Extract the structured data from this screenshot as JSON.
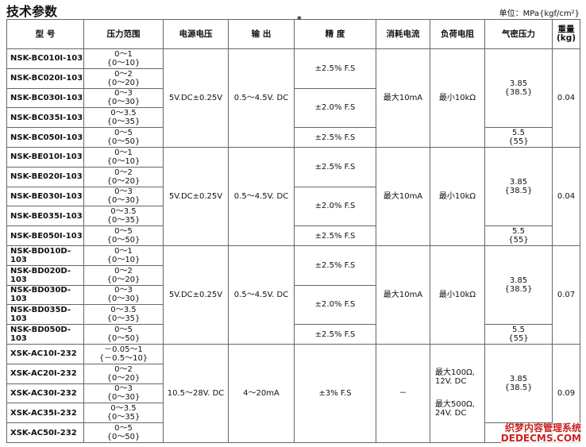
{
  "header": {
    "title": "技术参数",
    "unit": "单位：MPa{kgf/cm²}"
  },
  "table": {
    "columns": [
      "型 号",
      "压力范围",
      "电源电压",
      "输 出",
      "精 度",
      "消耗电流",
      "负荷电阻",
      "气密压力",
      [
        "重量",
        "(kg)"
      ]
    ],
    "note_mark": "*",
    "groups": [
      {
        "rows": [
          {
            "model": "NSK-BC010I-103",
            "range": [
              "0～1",
              "{0～10}"
            ]
          },
          {
            "model": "NSK-BC020I-103",
            "range": [
              "0～2",
              "{0～20}"
            ]
          },
          {
            "model": "NSK-BC030I-103",
            "range": [
              "0～3",
              "{0～30}"
            ]
          },
          {
            "model": "NSK-BC035I-103",
            "range": [
              "0～3.5",
              "{0～35}"
            ]
          },
          {
            "model": "NSK-BC050I-103",
            "range": [
              "0～5",
              "{0～50}"
            ]
          }
        ],
        "voltage": "5V.DC±0.25V",
        "output": "0.5～4.5V. DC",
        "accuracy": [
          "±2.5% F.S",
          "±2.0% F.S",
          "±2.5% F.S"
        ],
        "current": "最大10mA",
        "resistance": [
          "最小10kΩ"
        ],
        "airtight": [
          [
            "3.85",
            "{38.5}"
          ],
          [
            "5.5",
            "{55}"
          ]
        ],
        "weight": "0.04"
      },
      {
        "rows": [
          {
            "model": "NSK-BE010I-103",
            "range": [
              "0～1",
              "{0～10}"
            ]
          },
          {
            "model": "NSK-BE020I-103",
            "range": [
              "0～2",
              "{0～20}"
            ]
          },
          {
            "model": "NSK-BE030I-103",
            "range": [
              "0～3",
              "{0～30}"
            ]
          },
          {
            "model": "NSK-BE035I-103",
            "range": [
              "0～3.5",
              "{0～35}"
            ]
          },
          {
            "model": "NSK-BE050I-103",
            "range": [
              "0～5",
              "{0～50}"
            ]
          }
        ],
        "voltage": "5V.DC±0.25V",
        "output": "0.5～4.5V. DC",
        "accuracy": [
          "±2.5% F.S",
          "±2.0% F.S",
          "±2.5% F.S"
        ],
        "current": "最大10mA",
        "resistance": [
          "最小10kΩ"
        ],
        "airtight": [
          [
            "3.85",
            "{38.5}"
          ],
          [
            "5.5",
            "{55}"
          ]
        ],
        "weight": "0.04"
      },
      {
        "rows": [
          {
            "model": "NSK-BD010D-103",
            "range": [
              "0～1",
              "{0～10}"
            ]
          },
          {
            "model": "NSK-BD020D-103",
            "range": [
              "0～2",
              "{0～20}"
            ]
          },
          {
            "model": "NSK-BD030D-103",
            "range": [
              "0～3",
              "{0～30}"
            ]
          },
          {
            "model": "NSK-BD035D-103",
            "range": [
              "0～3.5",
              "{0～35}"
            ]
          },
          {
            "model": "NSK-BD050D-103",
            "range": [
              "0～5",
              "{0～50}"
            ]
          }
        ],
        "voltage": "5V.DC±0.25V",
        "output": "0.5～4.5V. DC",
        "accuracy": [
          "±2.5% F.S",
          "±2.0% F.S",
          "±2.5% F.S"
        ],
        "current": "最大10mA",
        "resistance": [
          "最小10kΩ"
        ],
        "airtight": [
          [
            "3.85",
            "{38.5}"
          ],
          [
            "5.5",
            "{55}"
          ]
        ],
        "weight": "0.07"
      },
      {
        "rows": [
          {
            "model": "XSK-AC10I-232",
            "range": [
              "－0.05～1",
              "{－0.5～10}"
            ]
          },
          {
            "model": "XSK-AC20I-232",
            "range": [
              "0～2",
              "{0～20}"
            ]
          },
          {
            "model": "XSK-AC30I-232",
            "range": [
              "0～3",
              "{0～30}"
            ]
          },
          {
            "model": "XSK-AC35I-232",
            "range": [
              "0～3.5",
              "{0～35}"
            ]
          },
          {
            "model": "XSK-AC50I-232",
            "range": [
              "0～5",
              "{0～50}"
            ]
          }
        ],
        "voltage": "10.5～28V. DC",
        "output": "4～20mA",
        "accuracy": [
          "±3% F.S"
        ],
        "current": "－",
        "resistance": [
          "最大100Ω,",
          "12V. DC",
          "最大500Ω,",
          "24V. DC"
        ],
        "airtight": [
          [
            "3.85",
            "{38.5}"
          ]
        ],
        "weight": "0.09"
      }
    ]
  },
  "watermark": [
    "织梦内容管理系统",
    "DEDECMS.COM"
  ]
}
